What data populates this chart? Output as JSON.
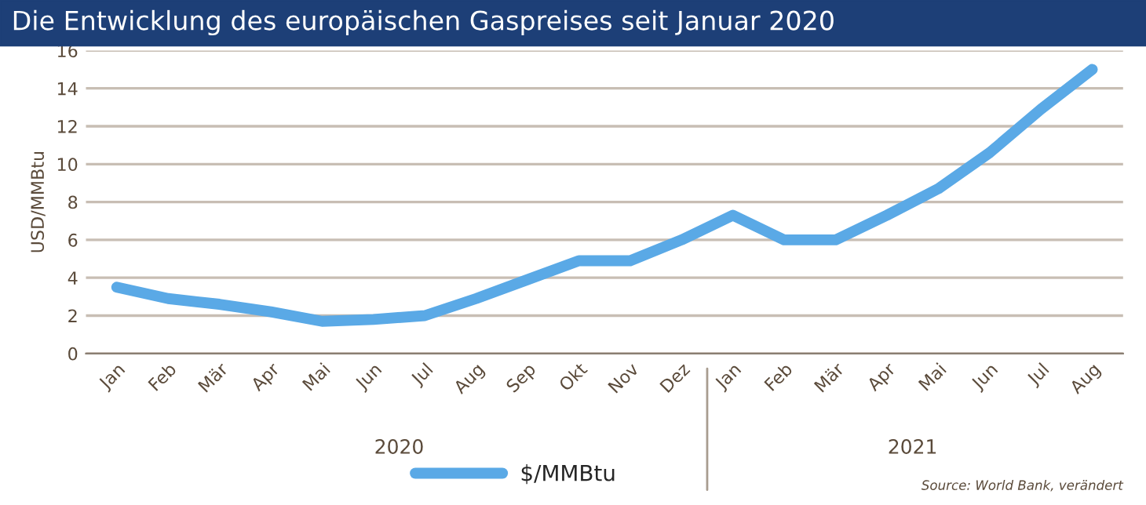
{
  "chart_data": {
    "type": "line",
    "title": "Die Entwicklung des europäischen Gaspreises seit Januar 2020",
    "ylabel": "USD/MMBtu",
    "categories": [
      "Jan",
      "Feb",
      "Mär",
      "Apr",
      "Mai",
      "Jun",
      "Jul",
      "Aug",
      "Sep",
      "Okt",
      "Nov",
      "Dez",
      "Jan",
      "Feb",
      "Mär",
      "Apr",
      "Mai",
      "Jun",
      "Jul",
      "Aug"
    ],
    "series": [
      {
        "name": "$/MMBtu",
        "color": "#5aa9e6",
        "values": [
          3.5,
          2.9,
          2.6,
          2.2,
          1.7,
          1.8,
          2.0,
          2.9,
          3.9,
          4.9,
          4.9,
          6.0,
          7.3,
          6.0,
          6.0,
          7.3,
          8.7,
          10.6,
          12.9,
          15.0
        ]
      }
    ],
    "ylim": [
      0,
      16
    ],
    "yticks": [
      0,
      2,
      4,
      6,
      8,
      10,
      12,
      14,
      16
    ],
    "grid": "y",
    "legend": "bottom",
    "marker": "none",
    "line_style": "solid",
    "annotations": [
      "2020",
      "2021",
      "Source: World Bank, verändert"
    ]
  }
}
